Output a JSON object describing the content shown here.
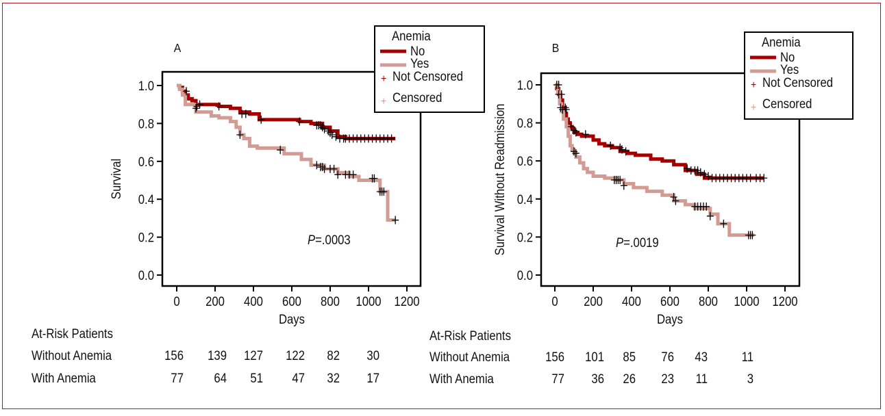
{
  "chart_data": [
    {
      "type": "line",
      "subtype": "kaplan-meier",
      "panel_label": "A",
      "xlabel": "Days",
      "ylabel": "Survival",
      "xlim": [
        0,
        1200
      ],
      "ylim": [
        0,
        1.0
      ],
      "x_ticks": [
        "0",
        "200",
        "400",
        "600",
        "800",
        "1000",
        "1200"
      ],
      "y_ticks": [
        "0.0",
        "0.2",
        "0.4",
        "0.6",
        "0.8",
        "1.0"
      ],
      "annotation": {
        "italic": "P",
        "text": "=.0003"
      },
      "legend": {
        "title": "Anemia",
        "position": "top-right",
        "entries": [
          "No",
          "Yes"
        ],
        "markers": [
          "Not Censored",
          "Censored"
        ]
      },
      "series": [
        {
          "name": "No",
          "color": "#a50000",
          "x": [
            0,
            15,
            30,
            45,
            60,
            80,
            100,
            130,
            220,
            280,
            330,
            380,
            430,
            500,
            640,
            700,
            760,
            800,
            840,
            880,
            1140
          ],
          "y": [
            1.0,
            0.99,
            0.97,
            0.95,
            0.93,
            0.92,
            0.9,
            0.9,
            0.89,
            0.88,
            0.86,
            0.85,
            0.82,
            0.82,
            0.81,
            0.8,
            0.78,
            0.76,
            0.73,
            0.72,
            0.72
          ],
          "censored_x": [
            50,
            105,
            120,
            220,
            340,
            360,
            440,
            640,
            730,
            740,
            750,
            760,
            770,
            790,
            800,
            810,
            830,
            850,
            870,
            880,
            900,
            920,
            940,
            960,
            980,
            1000,
            1020,
            1040,
            1060,
            1080,
            1100,
            1120
          ],
          "censored_y": [
            0.97,
            0.89,
            0.9,
            0.89,
            0.85,
            0.85,
            0.82,
            0.81,
            0.79,
            0.79,
            0.79,
            0.78,
            0.77,
            0.76,
            0.75,
            0.74,
            0.73,
            0.72,
            0.72,
            0.72,
            0.72,
            0.72,
            0.72,
            0.72,
            0.72,
            0.72,
            0.72,
            0.72,
            0.72,
            0.72,
            0.72,
            0.72
          ]
        },
        {
          "name": "Yes",
          "color": "#d09c94",
          "x": [
            0,
            15,
            30,
            45,
            100,
            130,
            180,
            220,
            280,
            310,
            330,
            350,
            380,
            420,
            560,
            650,
            700,
            770,
            840,
            900,
            950,
            1060,
            1100,
            1140
          ],
          "y": [
            1.0,
            0.98,
            0.95,
            0.9,
            0.86,
            0.86,
            0.84,
            0.83,
            0.81,
            0.78,
            0.74,
            0.72,
            0.68,
            0.67,
            0.64,
            0.61,
            0.58,
            0.56,
            0.54,
            0.52,
            0.5,
            0.44,
            0.29,
            0.29
          ],
          "censored_x": [
            100,
            330,
            540,
            730,
            750,
            760,
            770,
            800,
            820,
            840,
            880,
            900,
            920,
            1020,
            1030,
            1060,
            1070,
            1080,
            1140
          ],
          "censored_y": [
            0.88,
            0.74,
            0.66,
            0.58,
            0.57,
            0.57,
            0.56,
            0.56,
            0.56,
            0.53,
            0.53,
            0.53,
            0.53,
            0.51,
            0.51,
            0.44,
            0.44,
            0.44,
            0.29
          ]
        }
      ],
      "at_risk": {
        "title": "At-Risk Patients",
        "rows": [
          {
            "label": "Without Anemia",
            "values": [
              "156",
              "139",
              "127",
              "122",
              "82",
              "30"
            ]
          },
          {
            "label": "With Anemia",
            "values": [
              "77",
              "64",
              "51",
              "47",
              "32",
              "17"
            ]
          }
        ]
      }
    },
    {
      "type": "line",
      "subtype": "kaplan-meier",
      "panel_label": "B",
      "xlabel": "Days",
      "ylabel": "Survival Without Readmission",
      "xlim": [
        0,
        1200
      ],
      "ylim": [
        0,
        1.0
      ],
      "x_ticks": [
        "0",
        "200",
        "400",
        "600",
        "800",
        "1000",
        "1200"
      ],
      "y_ticks": [
        "0.0",
        "0.2",
        "0.4",
        "0.6",
        "0.8",
        "1.0"
      ],
      "annotation": {
        "italic": "P",
        "text": "=.0019"
      },
      "legend": {
        "title": "Anemia",
        "position": "top-right",
        "entries": [
          "No",
          "Yes"
        ],
        "markers": [
          "Not Censored",
          "Censored"
        ]
      },
      "series": [
        {
          "name": "No",
          "color": "#a50000",
          "x": [
            0,
            10,
            20,
            30,
            40,
            50,
            60,
            70,
            80,
            90,
            100,
            120,
            140,
            200,
            230,
            260,
            300,
            340,
            380,
            420,
            500,
            560,
            620,
            680,
            740,
            780,
            1090
          ],
          "y": [
            1.0,
            0.98,
            0.95,
            0.92,
            0.88,
            0.85,
            0.82,
            0.8,
            0.78,
            0.77,
            0.75,
            0.74,
            0.73,
            0.71,
            0.69,
            0.68,
            0.67,
            0.65,
            0.64,
            0.63,
            0.61,
            0.6,
            0.58,
            0.55,
            0.53,
            0.51,
            0.51
          ],
          "censored_x": [
            10,
            20,
            35,
            55,
            60,
            85,
            100,
            110,
            160,
            290,
            340,
            350,
            370,
            690,
            710,
            730,
            745,
            760,
            780,
            800,
            820,
            840,
            860,
            880,
            900,
            920,
            940,
            960,
            980,
            1000,
            1020,
            1050,
            1070,
            1090
          ],
          "censored_y": [
            1.0,
            1.0,
            0.95,
            0.88,
            0.87,
            0.78,
            0.76,
            0.75,
            0.74,
            0.68,
            0.67,
            0.66,
            0.65,
            0.56,
            0.55,
            0.55,
            0.55,
            0.54,
            0.53,
            0.52,
            0.51,
            0.51,
            0.51,
            0.51,
            0.51,
            0.51,
            0.51,
            0.51,
            0.51,
            0.51,
            0.51,
            0.51,
            0.51,
            0.51
          ]
        },
        {
          "name": "Yes",
          "color": "#d09c94",
          "x": [
            0,
            15,
            25,
            35,
            45,
            60,
            70,
            80,
            90,
            100,
            110,
            130,
            150,
            170,
            200,
            260,
            320,
            360,
            410,
            480,
            560,
            620,
            680,
            730,
            810,
            850,
            910,
            1040
          ],
          "y": [
            1.0,
            0.96,
            0.9,
            0.86,
            0.82,
            0.78,
            0.73,
            0.68,
            0.66,
            0.64,
            0.62,
            0.59,
            0.56,
            0.54,
            0.52,
            0.51,
            0.5,
            0.48,
            0.46,
            0.44,
            0.42,
            0.39,
            0.37,
            0.35,
            0.32,
            0.27,
            0.21,
            0.21
          ],
          "censored_x": [
            20,
            30,
            40,
            100,
            110,
            310,
            320,
            330,
            340,
            360,
            620,
            630,
            730,
            745,
            760,
            775,
            790,
            810,
            880,
            1010,
            1020,
            1030
          ],
          "censored_y": [
            0.95,
            0.88,
            0.87,
            0.65,
            0.64,
            0.5,
            0.5,
            0.5,
            0.5,
            0.47,
            0.41,
            0.39,
            0.36,
            0.36,
            0.36,
            0.36,
            0.36,
            0.31,
            0.27,
            0.21,
            0.21,
            0.21
          ]
        }
      ],
      "at_risk": {
        "title": "At-Risk Patients",
        "rows": [
          {
            "label": "Without Anemia",
            "values": [
              "156",
              "101",
              "85",
              "76",
              "43",
              "11"
            ]
          },
          {
            "label": "With Anemia",
            "values": [
              "77",
              "36",
              "26",
              "23",
              "11",
              "3"
            ]
          }
        ]
      }
    }
  ]
}
